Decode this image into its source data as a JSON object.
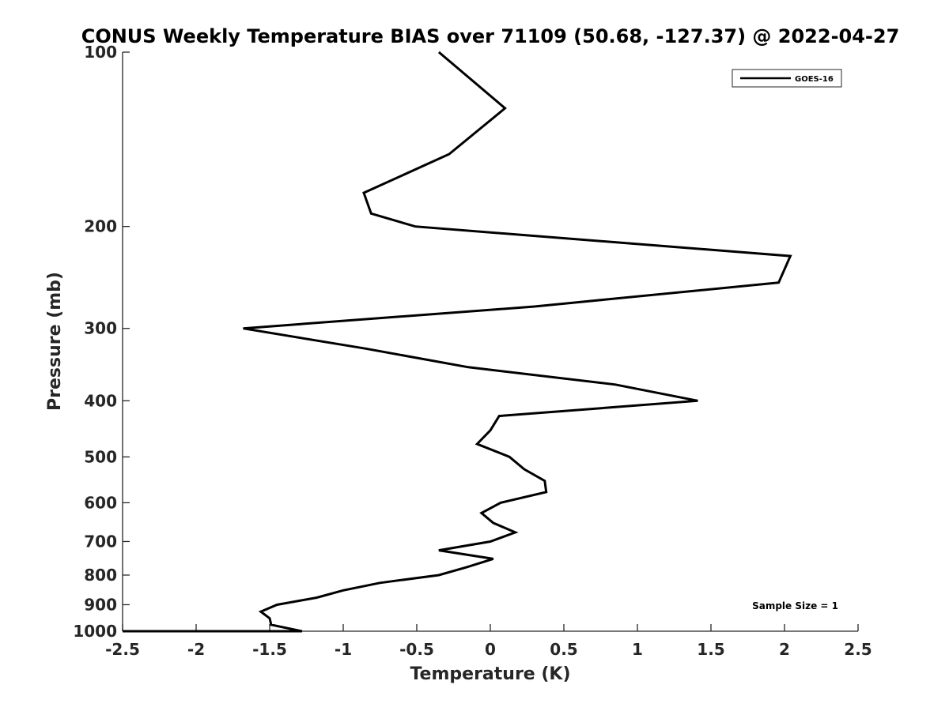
{
  "chart_data": {
    "type": "line",
    "title": "CONUS Weekly Temperature BIAS over 71109 (50.68, -127.37) @ 2022-04-27",
    "xlabel": "Temperature (K)",
    "ylabel": "Pressure (mb)",
    "xlim": [
      -2.5,
      2.5
    ],
    "ylim": [
      100,
      1000
    ],
    "y_scale": "log",
    "y_reversed": true,
    "x_ticks": [
      "-2.5",
      "-2",
      "-1.5",
      "-1",
      "-0.5",
      "0",
      "0.5",
      "1",
      "1.5",
      "2",
      "2.5"
    ],
    "x_tick_values": [
      -2.5,
      -2,
      -1.5,
      -1,
      -0.5,
      0,
      0.5,
      1,
      1.5,
      2,
      2.5
    ],
    "y_ticks": [
      "100",
      "200",
      "300",
      "400",
      "500",
      "600",
      "700",
      "800",
      "900",
      "1000"
    ],
    "y_tick_values": [
      100,
      200,
      300,
      400,
      500,
      600,
      700,
      800,
      900,
      1000
    ],
    "grid": false,
    "legend_position": "top-right",
    "series": [
      {
        "name": "GOES-16",
        "color": "#000000",
        "x": [
          -0.35,
          0.1,
          -0.28,
          -0.86,
          -0.81,
          -0.51,
          2.04,
          1.96,
          0.3,
          -1.68,
          -0.85,
          -0.15,
          0.85,
          1.41,
          0.06,
          0.0,
          -0.09,
          0.13,
          0.23,
          0.37,
          0.38,
          0.07,
          -0.06,
          0.02,
          0.17,
          0.0,
          -0.35,
          0.02,
          -0.16,
          -0.35,
          -0.75,
          -1.0,
          -1.18,
          -1.45,
          -1.56,
          -1.5,
          -1.49,
          -1.28,
          -1.5,
          -1.78,
          -2.5
        ],
        "y": [
          100,
          125,
          150,
          175,
          190,
          200,
          225,
          250,
          275,
          300,
          325,
          350,
          375,
          400,
          425,
          450,
          475,
          500,
          525,
          550,
          575,
          600,
          625,
          650,
          675,
          700,
          725,
          750,
          775,
          800,
          825,
          850,
          875,
          900,
          925,
          950,
          975,
          1000,
          1000,
          1000,
          1000
        ]
      }
    ],
    "annotations": [
      "Sample Size = 1"
    ]
  }
}
